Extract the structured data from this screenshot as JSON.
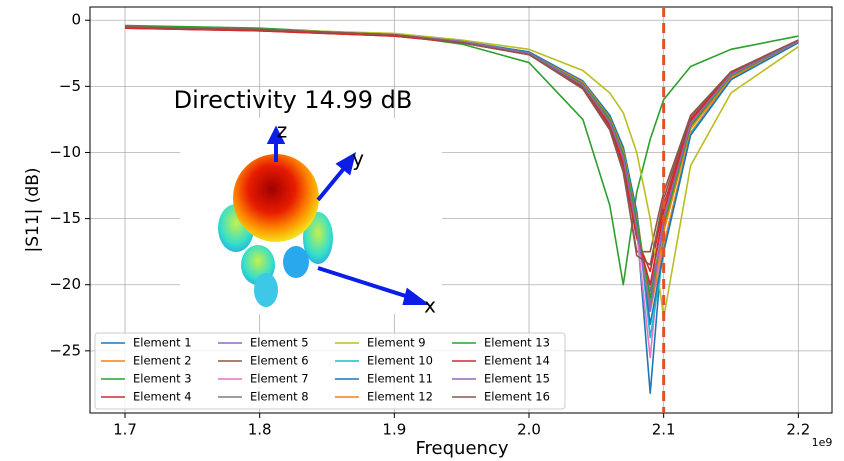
{
  "chart_data": {
    "type": "line",
    "xlabel": "Frequency",
    "ylabel": "|S11| (dB)",
    "x_offset_label": "1e9",
    "x": [
      1.7,
      1.8,
      1.9,
      1.95,
      2.0,
      2.04,
      2.06,
      2.07,
      2.08,
      2.09,
      2.1,
      2.12,
      2.15,
      2.2
    ],
    "xlim": [
      1.674,
      2.225
    ],
    "ylim": [
      -29.7,
      1.0
    ],
    "xticks": [
      1.7,
      1.8,
      1.9,
      {
        "value": 2.0,
        "label": "2.0"
      },
      2.1,
      2.2
    ],
    "yticks": [
      0,
      {
        "value": -5,
        "label": "−5"
      },
      {
        "value": -10,
        "label": "−10"
      },
      {
        "value": -15,
        "label": "−15"
      },
      {
        "value": -20,
        "label": "−20"
      },
      {
        "value": -25,
        "label": "−25"
      }
    ],
    "grid": true,
    "legend": "lower left",
    "vline": {
      "x": 2.1,
      "color": "#e0522c"
    },
    "series": [
      {
        "name": "Element 1",
        "color": "#1f77b4",
        "values": [
          -0.5,
          -0.7,
          -1.1,
          -1.6,
          -2.5,
          -4.8,
          -7.5,
          -10,
          -15.5,
          -28.2,
          -16,
          -8,
          -4.2,
          -1.6
        ]
      },
      {
        "name": "Element 2",
        "color": "#ff7f0e",
        "values": [
          -0.5,
          -0.7,
          -1.1,
          -1.6,
          -2.5,
          -4.7,
          -7.3,
          -9.7,
          -14.5,
          -22,
          -17,
          -8.5,
          -4.4,
          -1.7
        ]
      },
      {
        "name": "Element 3",
        "color": "#2ca02c",
        "values": [
          -0.4,
          -0.6,
          -1.1,
          -1.8,
          -3.2,
          -7.5,
          -14,
          -20,
          -13,
          -9,
          -6,
          -3.5,
          -2.2,
          -1.2
        ]
      },
      {
        "name": "Element 4",
        "color": "#d62728",
        "values": [
          -0.6,
          -0.8,
          -1.2,
          -1.7,
          -2.6,
          -5,
          -8,
          -11,
          -16.5,
          -19,
          -14,
          -7.5,
          -4,
          -1.6
        ]
      },
      {
        "name": "Element 5",
        "color": "#9467bd",
        "values": [
          -0.5,
          -0.7,
          -1.1,
          -1.6,
          -2.5,
          -4.9,
          -7.8,
          -10.6,
          -16,
          -20.5,
          -14.5,
          -7.7,
          -4.1,
          -1.6
        ]
      },
      {
        "name": "Element 6",
        "color": "#8c564b",
        "values": [
          -0.5,
          -0.7,
          -1.1,
          -1.7,
          -2.6,
          -5.2,
          -8.3,
          -11.5,
          -17.5,
          -17.5,
          -13,
          -7.2,
          -3.9,
          -1.5
        ]
      },
      {
        "name": "Element 7",
        "color": "#e377c2",
        "values": [
          -0.5,
          -0.7,
          -1.1,
          -1.6,
          -2.5,
          -4.9,
          -7.7,
          -10.4,
          -16,
          -25.5,
          -15,
          -7.8,
          -4.1,
          -1.6
        ]
      },
      {
        "name": "Element 8",
        "color": "#7f7f7f",
        "values": [
          -0.5,
          -0.7,
          -1.1,
          -1.6,
          -2.5,
          -4.8,
          -7.6,
          -10.2,
          -15.5,
          -21.5,
          -15.5,
          -8,
          -4.2,
          -1.6
        ]
      },
      {
        "name": "Element 9",
        "color": "#bcbd22",
        "values": [
          -0.5,
          -0.7,
          -1.0,
          -1.5,
          -2.2,
          -3.8,
          -5.5,
          -7,
          -10,
          -15,
          -22.5,
          -11,
          -5.5,
          -2.0
        ]
      },
      {
        "name": "Element 10",
        "color": "#17becf",
        "values": [
          -0.5,
          -0.7,
          -1.1,
          -1.6,
          -2.4,
          -4.6,
          -7.2,
          -9.6,
          -14.5,
          -24,
          -17.5,
          -8.6,
          -4.5,
          -1.7
        ]
      },
      {
        "name": "Element 11",
        "color": "#1f77b4",
        "values": [
          -0.5,
          -0.7,
          -1.1,
          -1.6,
          -2.4,
          -4.6,
          -7.2,
          -9.6,
          -14.5,
          -23,
          -17.5,
          -8.7,
          -4.5,
          -1.7
        ]
      },
      {
        "name": "Element 12",
        "color": "#ff7f0e",
        "values": [
          -0.5,
          -0.7,
          -1.1,
          -1.6,
          -2.5,
          -4.7,
          -7.4,
          -9.9,
          -15,
          -22,
          -16,
          -8.2,
          -4.3,
          -1.6
        ]
      },
      {
        "name": "Element 13",
        "color": "#2ca02c",
        "values": [
          -0.5,
          -0.7,
          -1.1,
          -1.6,
          -2.5,
          -4.8,
          -7.5,
          -10.1,
          -15.2,
          -21,
          -15.5,
          -8,
          -4.2,
          -1.6
        ]
      },
      {
        "name": "Element 14",
        "color": "#d62728",
        "values": [
          -0.6,
          -0.8,
          -1.2,
          -1.7,
          -2.6,
          -5,
          -7.9,
          -10.8,
          -16.2,
          -20,
          -14.5,
          -7.6,
          -4,
          -1.6
        ]
      },
      {
        "name": "Element 15",
        "color": "#9467bd",
        "values": [
          -0.5,
          -0.7,
          -1.1,
          -1.6,
          -2.5,
          -4.9,
          -7.7,
          -10.4,
          -15.8,
          -22,
          -15,
          -7.8,
          -4.1,
          -1.6
        ]
      },
      {
        "name": "Element 16",
        "color": "#8c564b",
        "values": [
          -0.5,
          -0.7,
          -1.1,
          -1.7,
          -2.6,
          -5.1,
          -8.2,
          -11.3,
          -17.8,
          -18.5,
          -13.5,
          -7.3,
          -3.9,
          -1.5
        ]
      }
    ],
    "inset": {
      "title": "Directivity 14.99 dB",
      "axis_labels": [
        "x",
        "y",
        "z"
      ]
    }
  }
}
